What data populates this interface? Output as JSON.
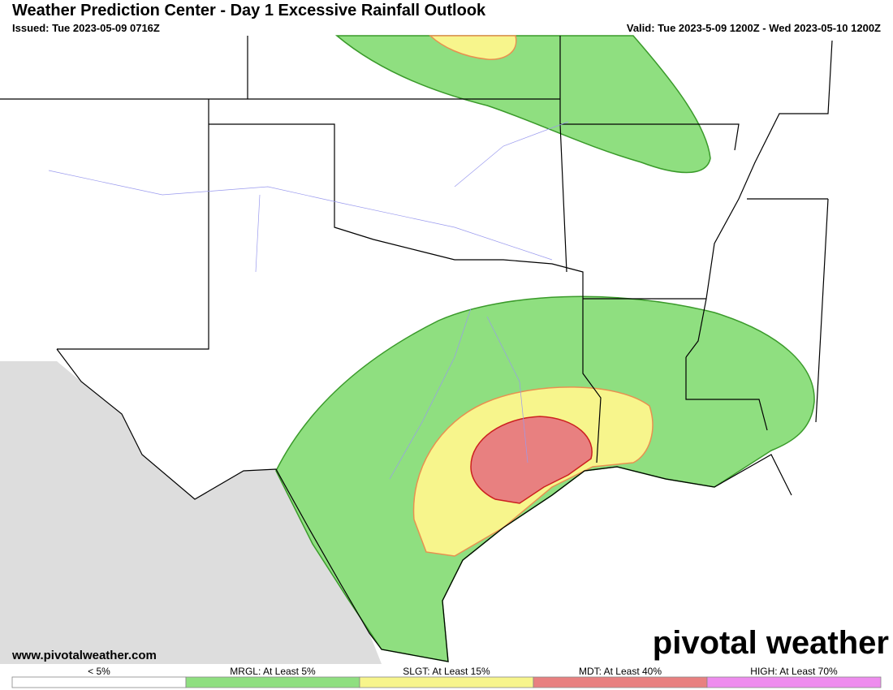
{
  "header": {
    "title": "Weather Prediction Center - Day 1 Excessive Rainfall Outlook",
    "issued": "Issued: Tue 2023-05-09 0716Z",
    "valid": "Valid: Tue 2023-5-09 1200Z - Wed 2023-05-10 1200Z"
  },
  "footer": {
    "website": "www.pivotalweather.com",
    "brand": "pivotal weather"
  },
  "legend": [
    {
      "label": "< 5%",
      "color": "#ffffff"
    },
    {
      "label": "MRGL: At Least 5%",
      "color": "#8fdf80"
    },
    {
      "label": "SLGT: At Least 15%",
      "color": "#f7f58c"
    },
    {
      "label": "MDT: At Least 40%",
      "color": "#e88080"
    },
    {
      "label": "HIGH: At Least 70%",
      "color": "#ee8cee"
    }
  ]
}
